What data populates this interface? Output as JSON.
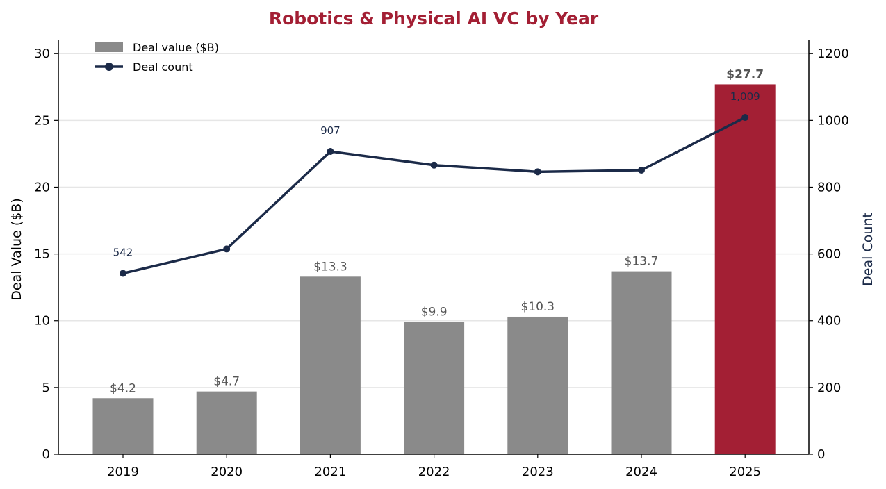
{
  "chart_data": {
    "type": "bar",
    "title": "Robotics & Physical AI VC by Year",
    "categories": [
      "2019",
      "2020",
      "2021",
      "2022",
      "2023",
      "2024",
      "2025"
    ],
    "series": [
      {
        "name": "Deal value ($B)",
        "type": "bar",
        "axis": "left",
        "values": [
          4.2,
          4.7,
          13.3,
          9.9,
          10.3,
          13.7,
          27.7
        ],
        "labels": [
          "$4.2",
          "$4.7",
          "$13.3",
          "$9.9",
          "$10.3",
          "$13.7",
          "$27.7"
        ],
        "highlight_index": 6
      },
      {
        "name": "Deal count",
        "type": "line",
        "axis": "right",
        "values": [
          542,
          615,
          907,
          866,
          846,
          851,
          1009
        ],
        "labels": [
          "542",
          "",
          "907",
          "",
          "",
          "",
          "1,009"
        ]
      }
    ],
    "ylabel_left": "Deal Value ($B)",
    "ylabel_right": "Deal Count",
    "ylim_left": [
      0,
      31
    ],
    "yticks_left": [
      0,
      5,
      10,
      15,
      20,
      25,
      30
    ],
    "ylim_right": [
      0,
      1240
    ],
    "yticks_right": [
      0,
      200,
      400,
      600,
      800,
      1000,
      1200
    ],
    "grid": true,
    "legend_position": "top-left",
    "colors": {
      "bar": "#8a8a8a",
      "bar_highlight": "#a31f34",
      "line": "#1b2a48",
      "title": "#a31f34",
      "grid": "#e6e6e6"
    }
  }
}
